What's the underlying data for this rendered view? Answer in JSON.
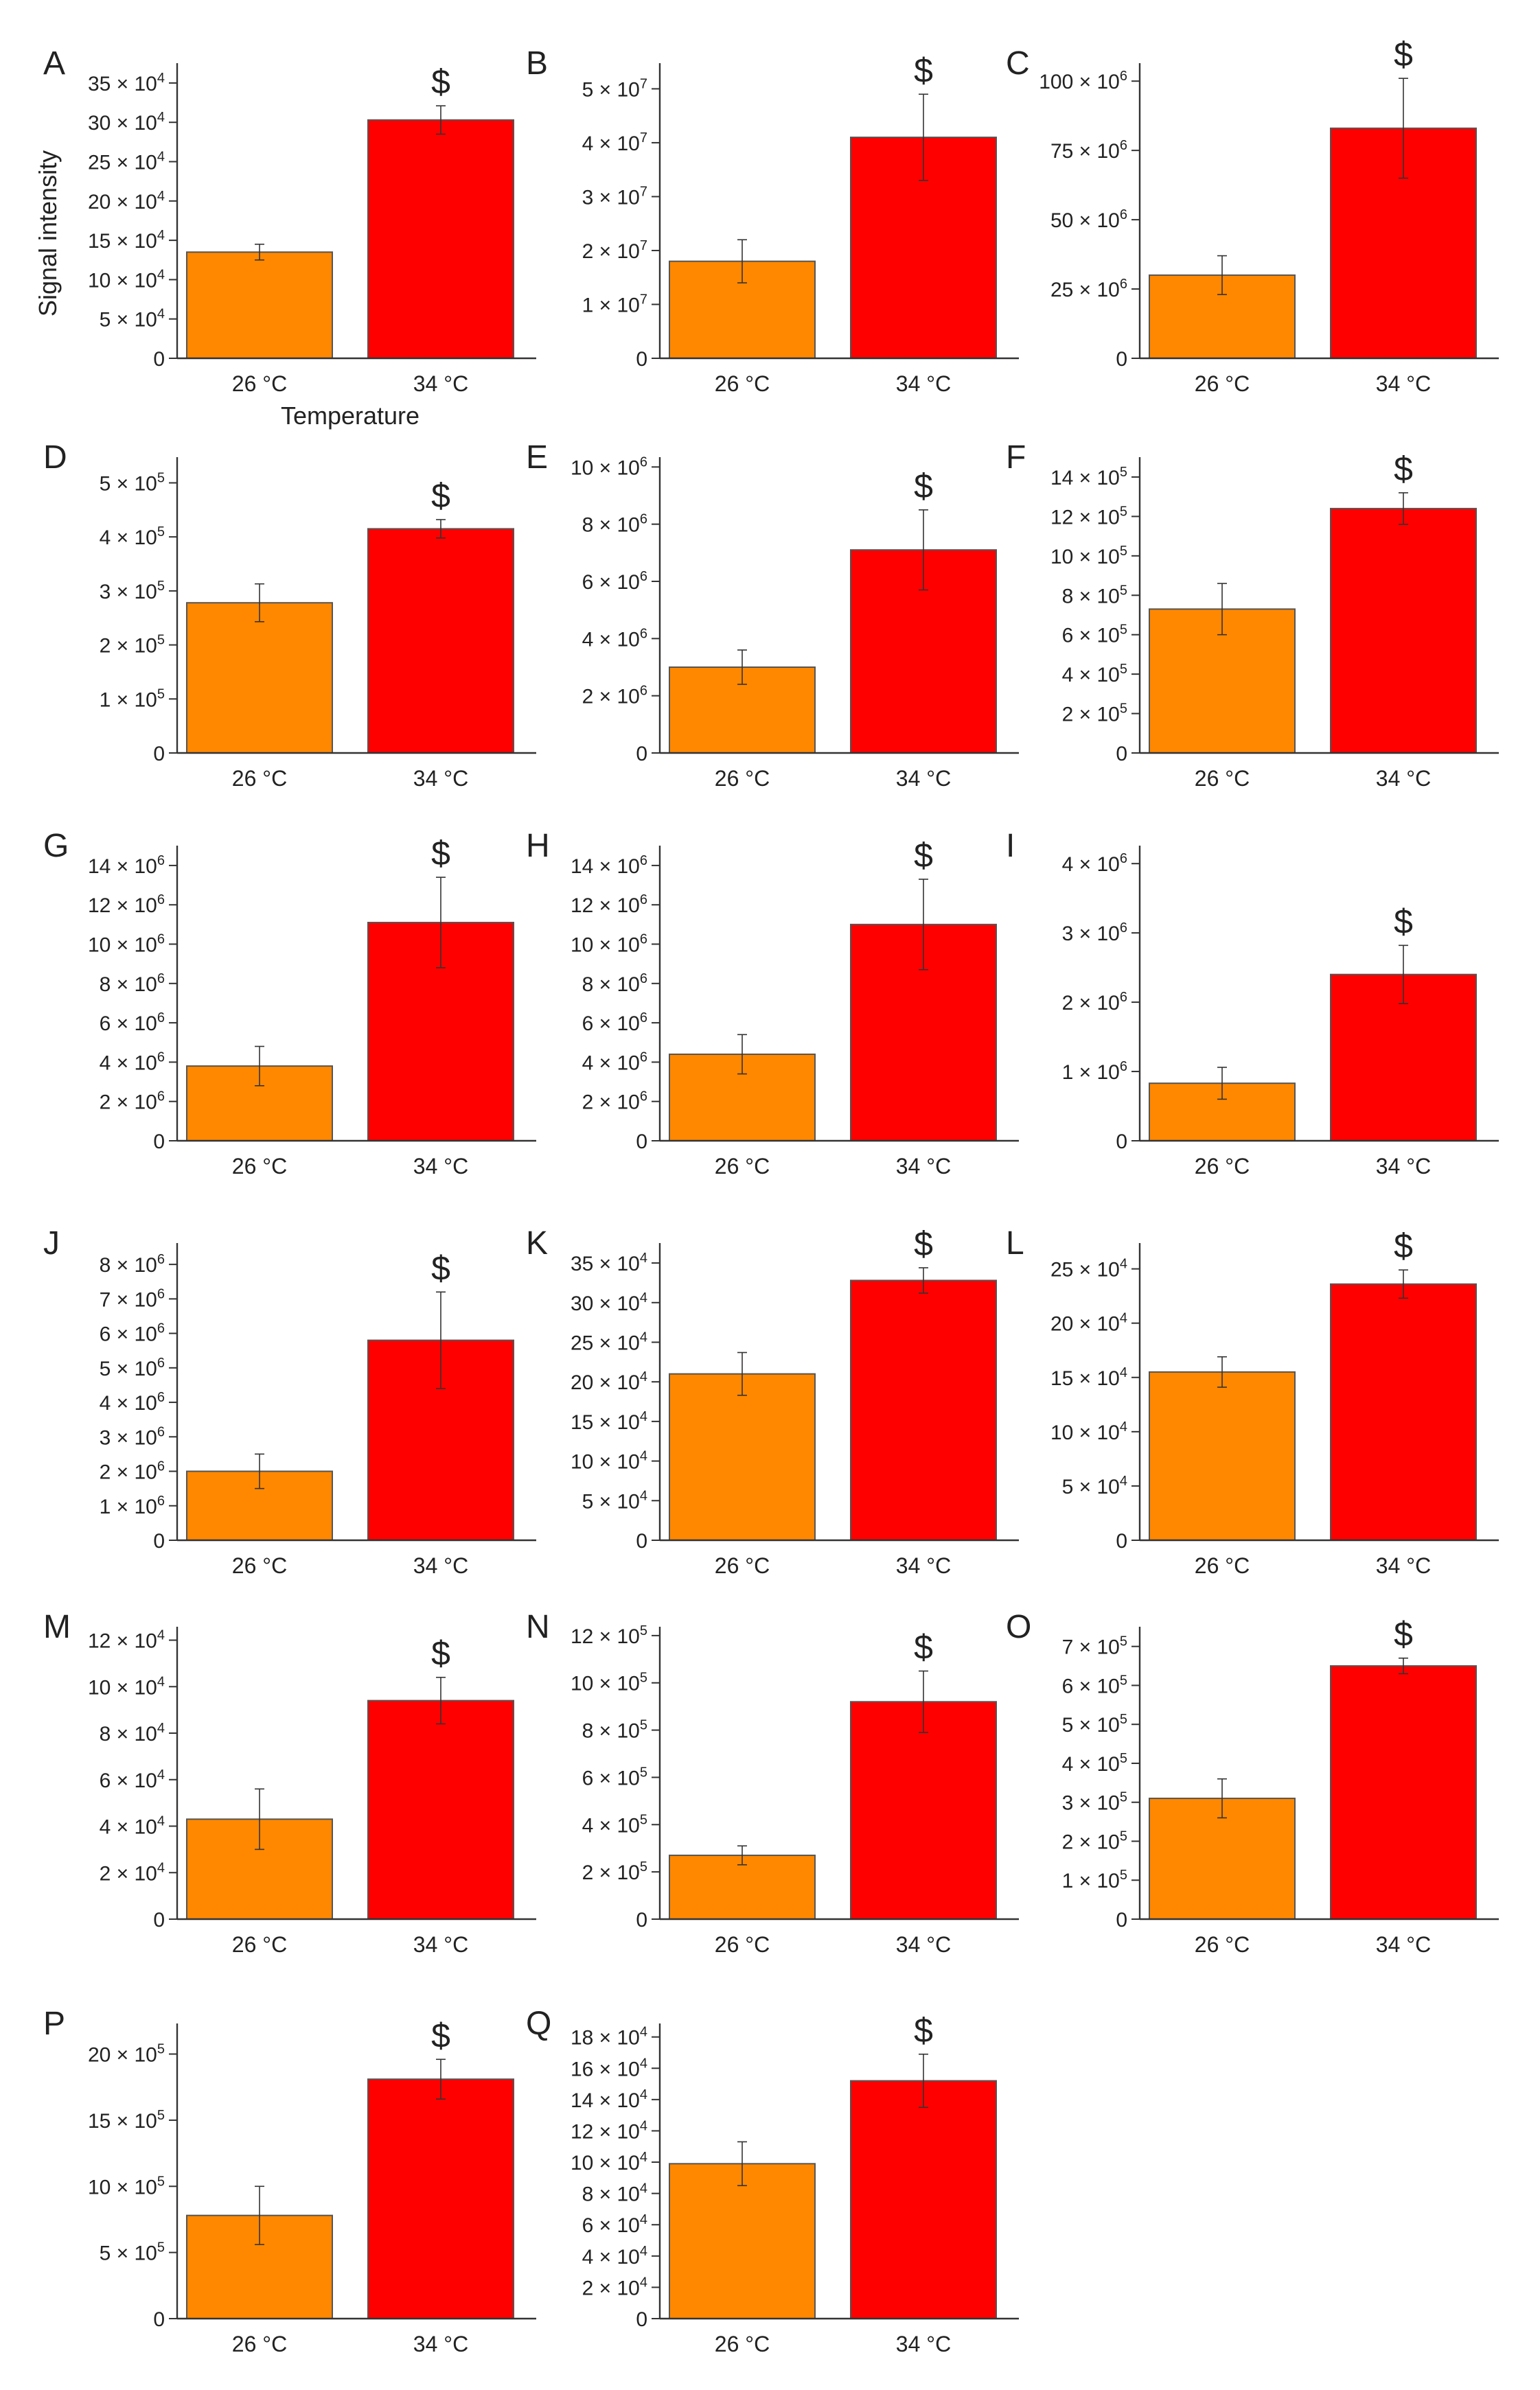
{
  "figure": {
    "y_axis_title": "Signal intensity",
    "x_axis_title": "Temperature",
    "colors": {
      "bar_26": "#ff8800",
      "bar_34": "#ff0000",
      "axis": "#333333"
    }
  },
  "chart_data": [
    {
      "panel": "A",
      "type": "bar",
      "categories": [
        "26 °C",
        "34 °C"
      ],
      "values": [
        13.5,
        30.3
      ],
      "errors": [
        1.0,
        1.8
      ],
      "ylim": [
        0,
        37
      ],
      "ticks": [
        {
          "v": 0,
          "m": "0"
        },
        {
          "v": 5,
          "m": "5 × 10",
          "e": "4"
        },
        {
          "v": 10,
          "m": "10 × 10",
          "e": "4"
        },
        {
          "v": 15,
          "m": "15 × 10",
          "e": "4"
        },
        {
          "v": 20,
          "m": "20 × 10",
          "e": "4"
        },
        {
          "v": 25,
          "m": "25 × 10",
          "e": "4"
        },
        {
          "v": 30,
          "m": "30 × 10",
          "e": "4"
        },
        {
          "v": 35,
          "m": "35 × 10",
          "e": "4"
        }
      ],
      "sig": "$",
      "unit": "× 10^4"
    },
    {
      "panel": "B",
      "type": "bar",
      "categories": [
        "26 °C",
        "34 °C"
      ],
      "values": [
        1.8,
        4.1
      ],
      "errors": [
        0.4,
        0.8
      ],
      "ylim": [
        0,
        5.4
      ],
      "ticks": [
        {
          "v": 0,
          "m": "0"
        },
        {
          "v": 1,
          "m": "1 × 10",
          "e": "7"
        },
        {
          "v": 2,
          "m": "2 × 10",
          "e": "7"
        },
        {
          "v": 3,
          "m": "3 × 10",
          "e": "7"
        },
        {
          "v": 4,
          "m": "4 × 10",
          "e": "7"
        },
        {
          "v": 5,
          "m": "5 × 10",
          "e": "7"
        }
      ],
      "sig": "$",
      "unit": "× 10^7"
    },
    {
      "panel": "C",
      "type": "bar",
      "categories": [
        "26 °C",
        "34 °C"
      ],
      "values": [
        30,
        83
      ],
      "errors": [
        7,
        18
      ],
      "ylim": [
        0,
        105
      ],
      "ticks": [
        {
          "v": 0,
          "m": "0"
        },
        {
          "v": 25,
          "m": "25 × 10",
          "e": "6"
        },
        {
          "v": 50,
          "m": "50 × 10",
          "e": "6"
        },
        {
          "v": 75,
          "m": "75 × 10",
          "e": "6"
        },
        {
          "v": 100,
          "m": "100 × 10",
          "e": "6"
        }
      ],
      "sig": "$",
      "unit": "× 10^6"
    },
    {
      "panel": "D",
      "type": "bar",
      "categories": [
        "26 °C",
        "34 °C"
      ],
      "values": [
        2.78,
        4.15
      ],
      "errors": [
        0.35,
        0.17
      ],
      "ylim": [
        0,
        5.4
      ],
      "ticks": [
        {
          "v": 0,
          "m": "0"
        },
        {
          "v": 1,
          "m": "1 × 10",
          "e": "5"
        },
        {
          "v": 2,
          "m": "2 × 10",
          "e": "5"
        },
        {
          "v": 3,
          "m": "3 × 10",
          "e": "5"
        },
        {
          "v": 4,
          "m": "4 × 10",
          "e": "5"
        },
        {
          "v": 5,
          "m": "5 × 10",
          "e": "5"
        }
      ],
      "sig": "$",
      "unit": "× 10^5"
    },
    {
      "panel": "E",
      "type": "bar",
      "categories": [
        "26 °C",
        "34 °C"
      ],
      "values": [
        3.0,
        7.1
      ],
      "errors": [
        0.6,
        1.4
      ],
      "ylim": [
        0,
        10.2
      ],
      "ticks": [
        {
          "v": 0,
          "m": "0"
        },
        {
          "v": 2,
          "m": "2 × 10",
          "e": "6"
        },
        {
          "v": 4,
          "m": "4 × 10",
          "e": "6"
        },
        {
          "v": 6,
          "m": "6 × 10",
          "e": "6"
        },
        {
          "v": 8,
          "m": "8 × 10",
          "e": "6"
        },
        {
          "v": 10,
          "m": "10 × 10",
          "e": "6"
        }
      ],
      "sig": "$",
      "unit": "× 10^6"
    },
    {
      "panel": "F",
      "type": "bar",
      "categories": [
        "26 °C",
        "34 °C"
      ],
      "values": [
        7.3,
        12.4
      ],
      "errors": [
        1.3,
        0.8
      ],
      "ylim": [
        0,
        14.8
      ],
      "ticks": [
        {
          "v": 0,
          "m": "0"
        },
        {
          "v": 2,
          "m": "2 × 10",
          "e": "5"
        },
        {
          "v": 4,
          "m": "4 × 10",
          "e": "5"
        },
        {
          "v": 6,
          "m": "6 × 10",
          "e": "5"
        },
        {
          "v": 8,
          "m": "8 × 10",
          "e": "5"
        },
        {
          "v": 10,
          "m": "10 × 10",
          "e": "5"
        },
        {
          "v": 12,
          "m": "12 × 10",
          "e": "5"
        },
        {
          "v": 14,
          "m": "14 × 10",
          "e": "5"
        }
      ],
      "sig": "$",
      "unit": "× 10^5"
    },
    {
      "panel": "G",
      "type": "bar",
      "categories": [
        "26 °C",
        "34 °C"
      ],
      "values": [
        3.8,
        11.1
      ],
      "errors": [
        1.0,
        2.3
      ],
      "ylim": [
        0,
        14.8
      ],
      "ticks": [
        {
          "v": 0,
          "m": "0"
        },
        {
          "v": 2,
          "m": "2 × 10",
          "e": "6"
        },
        {
          "v": 4,
          "m": "4 × 10",
          "e": "6"
        },
        {
          "v": 6,
          "m": "6 × 10",
          "e": "6"
        },
        {
          "v": 8,
          "m": "8 × 10",
          "e": "6"
        },
        {
          "v": 10,
          "m": "10 × 10",
          "e": "6"
        },
        {
          "v": 12,
          "m": "12 × 10",
          "e": "6"
        },
        {
          "v": 14,
          "m": "14 × 10",
          "e": "6"
        }
      ],
      "sig": "$",
      "unit": "× 10^6"
    },
    {
      "panel": "H",
      "type": "bar",
      "categories": [
        "26 °C",
        "34 °C"
      ],
      "values": [
        4.4,
        11.0
      ],
      "errors": [
        1.0,
        2.3
      ],
      "ylim": [
        0,
        14.8
      ],
      "ticks": [
        {
          "v": 0,
          "m": "0"
        },
        {
          "v": 2,
          "m": "2 × 10",
          "e": "6"
        },
        {
          "v": 4,
          "m": "4 × 10",
          "e": "6"
        },
        {
          "v": 6,
          "m": "6 × 10",
          "e": "6"
        },
        {
          "v": 8,
          "m": "8 × 10",
          "e": "6"
        },
        {
          "v": 10,
          "m": "10 × 10",
          "e": "6"
        },
        {
          "v": 12,
          "m": "12 × 10",
          "e": "6"
        },
        {
          "v": 14,
          "m": "14 × 10",
          "e": "6"
        }
      ],
      "sig": "$",
      "unit": "× 10^6"
    },
    {
      "panel": "I",
      "type": "bar",
      "categories": [
        "26 °C",
        "34 °C"
      ],
      "values": [
        0.83,
        2.4
      ],
      "errors": [
        0.23,
        0.42
      ],
      "ylim": [
        0,
        4.2
      ],
      "ticks": [
        {
          "v": 0,
          "m": "0"
        },
        {
          "v": 1,
          "m": "1 × 10",
          "e": "6"
        },
        {
          "v": 2,
          "m": "2 × 10",
          "e": "6"
        },
        {
          "v": 3,
          "m": "3 × 10",
          "e": "6"
        },
        {
          "v": 4,
          "m": "4 × 10",
          "e": "6"
        }
      ],
      "sig": "$",
      "unit": "× 10^6"
    },
    {
      "panel": "J",
      "type": "bar",
      "categories": [
        "26 °C",
        "34 °C"
      ],
      "values": [
        2.0,
        5.8
      ],
      "errors": [
        0.5,
        1.4
      ],
      "ylim": [
        0,
        8.5
      ],
      "ticks": [
        {
          "v": 0,
          "m": "0"
        },
        {
          "v": 1,
          "m": "1 × 10",
          "e": "6"
        },
        {
          "v": 2,
          "m": "2 × 10",
          "e": "6"
        },
        {
          "v": 3,
          "m": "3 × 10",
          "e": "6"
        },
        {
          "v": 4,
          "m": "4 × 10",
          "e": "6"
        },
        {
          "v": 5,
          "m": "5 × 10",
          "e": "6"
        },
        {
          "v": 6,
          "m": "6 × 10",
          "e": "6"
        },
        {
          "v": 7,
          "m": "7 × 10",
          "e": "6"
        },
        {
          "v": 8,
          "m": "8 × 10",
          "e": "6"
        }
      ],
      "sig": "$",
      "unit": "× 10^6"
    },
    {
      "panel": "K",
      "type": "bar",
      "categories": [
        "26 °C",
        "34 °C"
      ],
      "values": [
        21.0,
        32.8
      ],
      "errors": [
        2.7,
        1.6
      ],
      "ylim": [
        0,
        37
      ],
      "ticks": [
        {
          "v": 0,
          "m": "0"
        },
        {
          "v": 5,
          "m": "5 × 10",
          "e": "4"
        },
        {
          "v": 10,
          "m": "10 × 10",
          "e": "4"
        },
        {
          "v": 15,
          "m": "15 × 10",
          "e": "4"
        },
        {
          "v": 20,
          "m": "20 × 10",
          "e": "4"
        },
        {
          "v": 25,
          "m": "25 × 10",
          "e": "4"
        },
        {
          "v": 30,
          "m": "30 × 10",
          "e": "4"
        },
        {
          "v": 35,
          "m": "35 × 10",
          "e": "4"
        }
      ],
      "sig": "$",
      "unit": "× 10^4"
    },
    {
      "panel": "L",
      "type": "bar",
      "categories": [
        "26 °C",
        "34 °C"
      ],
      "values": [
        15.5,
        23.6
      ],
      "errors": [
        1.4,
        1.3
      ],
      "ylim": [
        0,
        27
      ],
      "ticks": [
        {
          "v": 0,
          "m": "0"
        },
        {
          "v": 5,
          "m": "5 × 10",
          "e": "4"
        },
        {
          "v": 10,
          "m": "10 × 10",
          "e": "4"
        },
        {
          "v": 15,
          "m": "15 × 10",
          "e": "4"
        },
        {
          "v": 20,
          "m": "20 × 10",
          "e": "4"
        },
        {
          "v": 25,
          "m": "25 × 10",
          "e": "4"
        }
      ],
      "sig": "$",
      "unit": "× 10^4"
    },
    {
      "panel": "M",
      "type": "bar",
      "categories": [
        "26 °C",
        "34 °C"
      ],
      "values": [
        4.3,
        9.4
      ],
      "errors": [
        1.3,
        1.0
      ],
      "ylim": [
        0,
        12.4
      ],
      "ticks": [
        {
          "v": 0,
          "m": "0"
        },
        {
          "v": 2,
          "m": "2 × 10",
          "e": "4"
        },
        {
          "v": 4,
          "m": "4 × 10",
          "e": "4"
        },
        {
          "v": 6,
          "m": "6 × 10",
          "e": "4"
        },
        {
          "v": 8,
          "m": "8 × 10",
          "e": "4"
        },
        {
          "v": 10,
          "m": "10 × 10",
          "e": "4"
        },
        {
          "v": 12,
          "m": "12 × 10",
          "e": "4"
        }
      ],
      "sig": "$",
      "unit": "× 10^4"
    },
    {
      "panel": "N",
      "type": "bar",
      "categories": [
        "26 °C",
        "34 °C"
      ],
      "values": [
        2.7,
        9.2
      ],
      "errors": [
        0.4,
        1.3
      ],
      "ylim": [
        0,
        12.2
      ],
      "ticks": [
        {
          "v": 0,
          "m": "0"
        },
        {
          "v": 2,
          "m": "2 × 10",
          "e": "5"
        },
        {
          "v": 4,
          "m": "4 × 10",
          "e": "5"
        },
        {
          "v": 6,
          "m": "6 × 10",
          "e": "5"
        },
        {
          "v": 8,
          "m": "8 × 10",
          "e": "5"
        },
        {
          "v": 10,
          "m": "10 × 10",
          "e": "5"
        },
        {
          "v": 12,
          "m": "12 × 10",
          "e": "5"
        }
      ],
      "sig": "$",
      "unit": "× 10^5"
    },
    {
      "panel": "O",
      "type": "bar",
      "categories": [
        "26 °C",
        "34 °C"
      ],
      "values": [
        3.1,
        6.5
      ],
      "errors": [
        0.5,
        0.2
      ],
      "ylim": [
        0,
        7.4
      ],
      "ticks": [
        {
          "v": 0,
          "m": "0"
        },
        {
          "v": 1,
          "m": "1 × 10",
          "e": "5"
        },
        {
          "v": 2,
          "m": "2 × 10",
          "e": "5"
        },
        {
          "v": 3,
          "m": "3 × 10",
          "e": "5"
        },
        {
          "v": 4,
          "m": "4 × 10",
          "e": "5"
        },
        {
          "v": 5,
          "m": "5 × 10",
          "e": "5"
        },
        {
          "v": 6,
          "m": "6 × 10",
          "e": "5"
        },
        {
          "v": 7,
          "m": "7 × 10",
          "e": "5"
        }
      ],
      "sig": "$",
      "unit": "× 10^5"
    },
    {
      "panel": "P",
      "type": "bar",
      "categories": [
        "26 °C",
        "34 °C"
      ],
      "values": [
        7.8,
        18.1
      ],
      "errors": [
        2.2,
        1.5
      ],
      "ylim": [
        0,
        22
      ],
      "ticks": [
        {
          "v": 0,
          "m": "0"
        },
        {
          "v": 5,
          "m": "5 × 10",
          "e": "5"
        },
        {
          "v": 10,
          "m": "10 × 10",
          "e": "5"
        },
        {
          "v": 15,
          "m": "15 × 10",
          "e": "5"
        },
        {
          "v": 20,
          "m": "20 × 10",
          "e": "5"
        }
      ],
      "sig": "$",
      "unit": "× 10^5"
    },
    {
      "panel": "Q",
      "type": "bar",
      "categories": [
        "26 °C",
        "34 °C"
      ],
      "values": [
        9.9,
        15.2
      ],
      "errors": [
        1.4,
        1.7
      ],
      "ylim": [
        0,
        18.6
      ],
      "ticks": [
        {
          "v": 0,
          "m": "0"
        },
        {
          "v": 2,
          "m": "2 × 10",
          "e": "4"
        },
        {
          "v": 4,
          "m": "4 × 10",
          "e": "4"
        },
        {
          "v": 6,
          "m": "6 × 10",
          "e": "4"
        },
        {
          "v": 8,
          "m": "8 × 10",
          "e": "4"
        },
        {
          "v": 10,
          "m": "10 × 10",
          "e": "4"
        },
        {
          "v": 12,
          "m": "12 × 10",
          "e": "4"
        },
        {
          "v": 14,
          "m": "14 × 10",
          "e": "4"
        },
        {
          "v": 16,
          "m": "16 × 10",
          "e": "4"
        },
        {
          "v": 18,
          "m": "18 × 10",
          "e": "4"
        }
      ],
      "sig": "$",
      "unit": "× 10^4"
    }
  ]
}
